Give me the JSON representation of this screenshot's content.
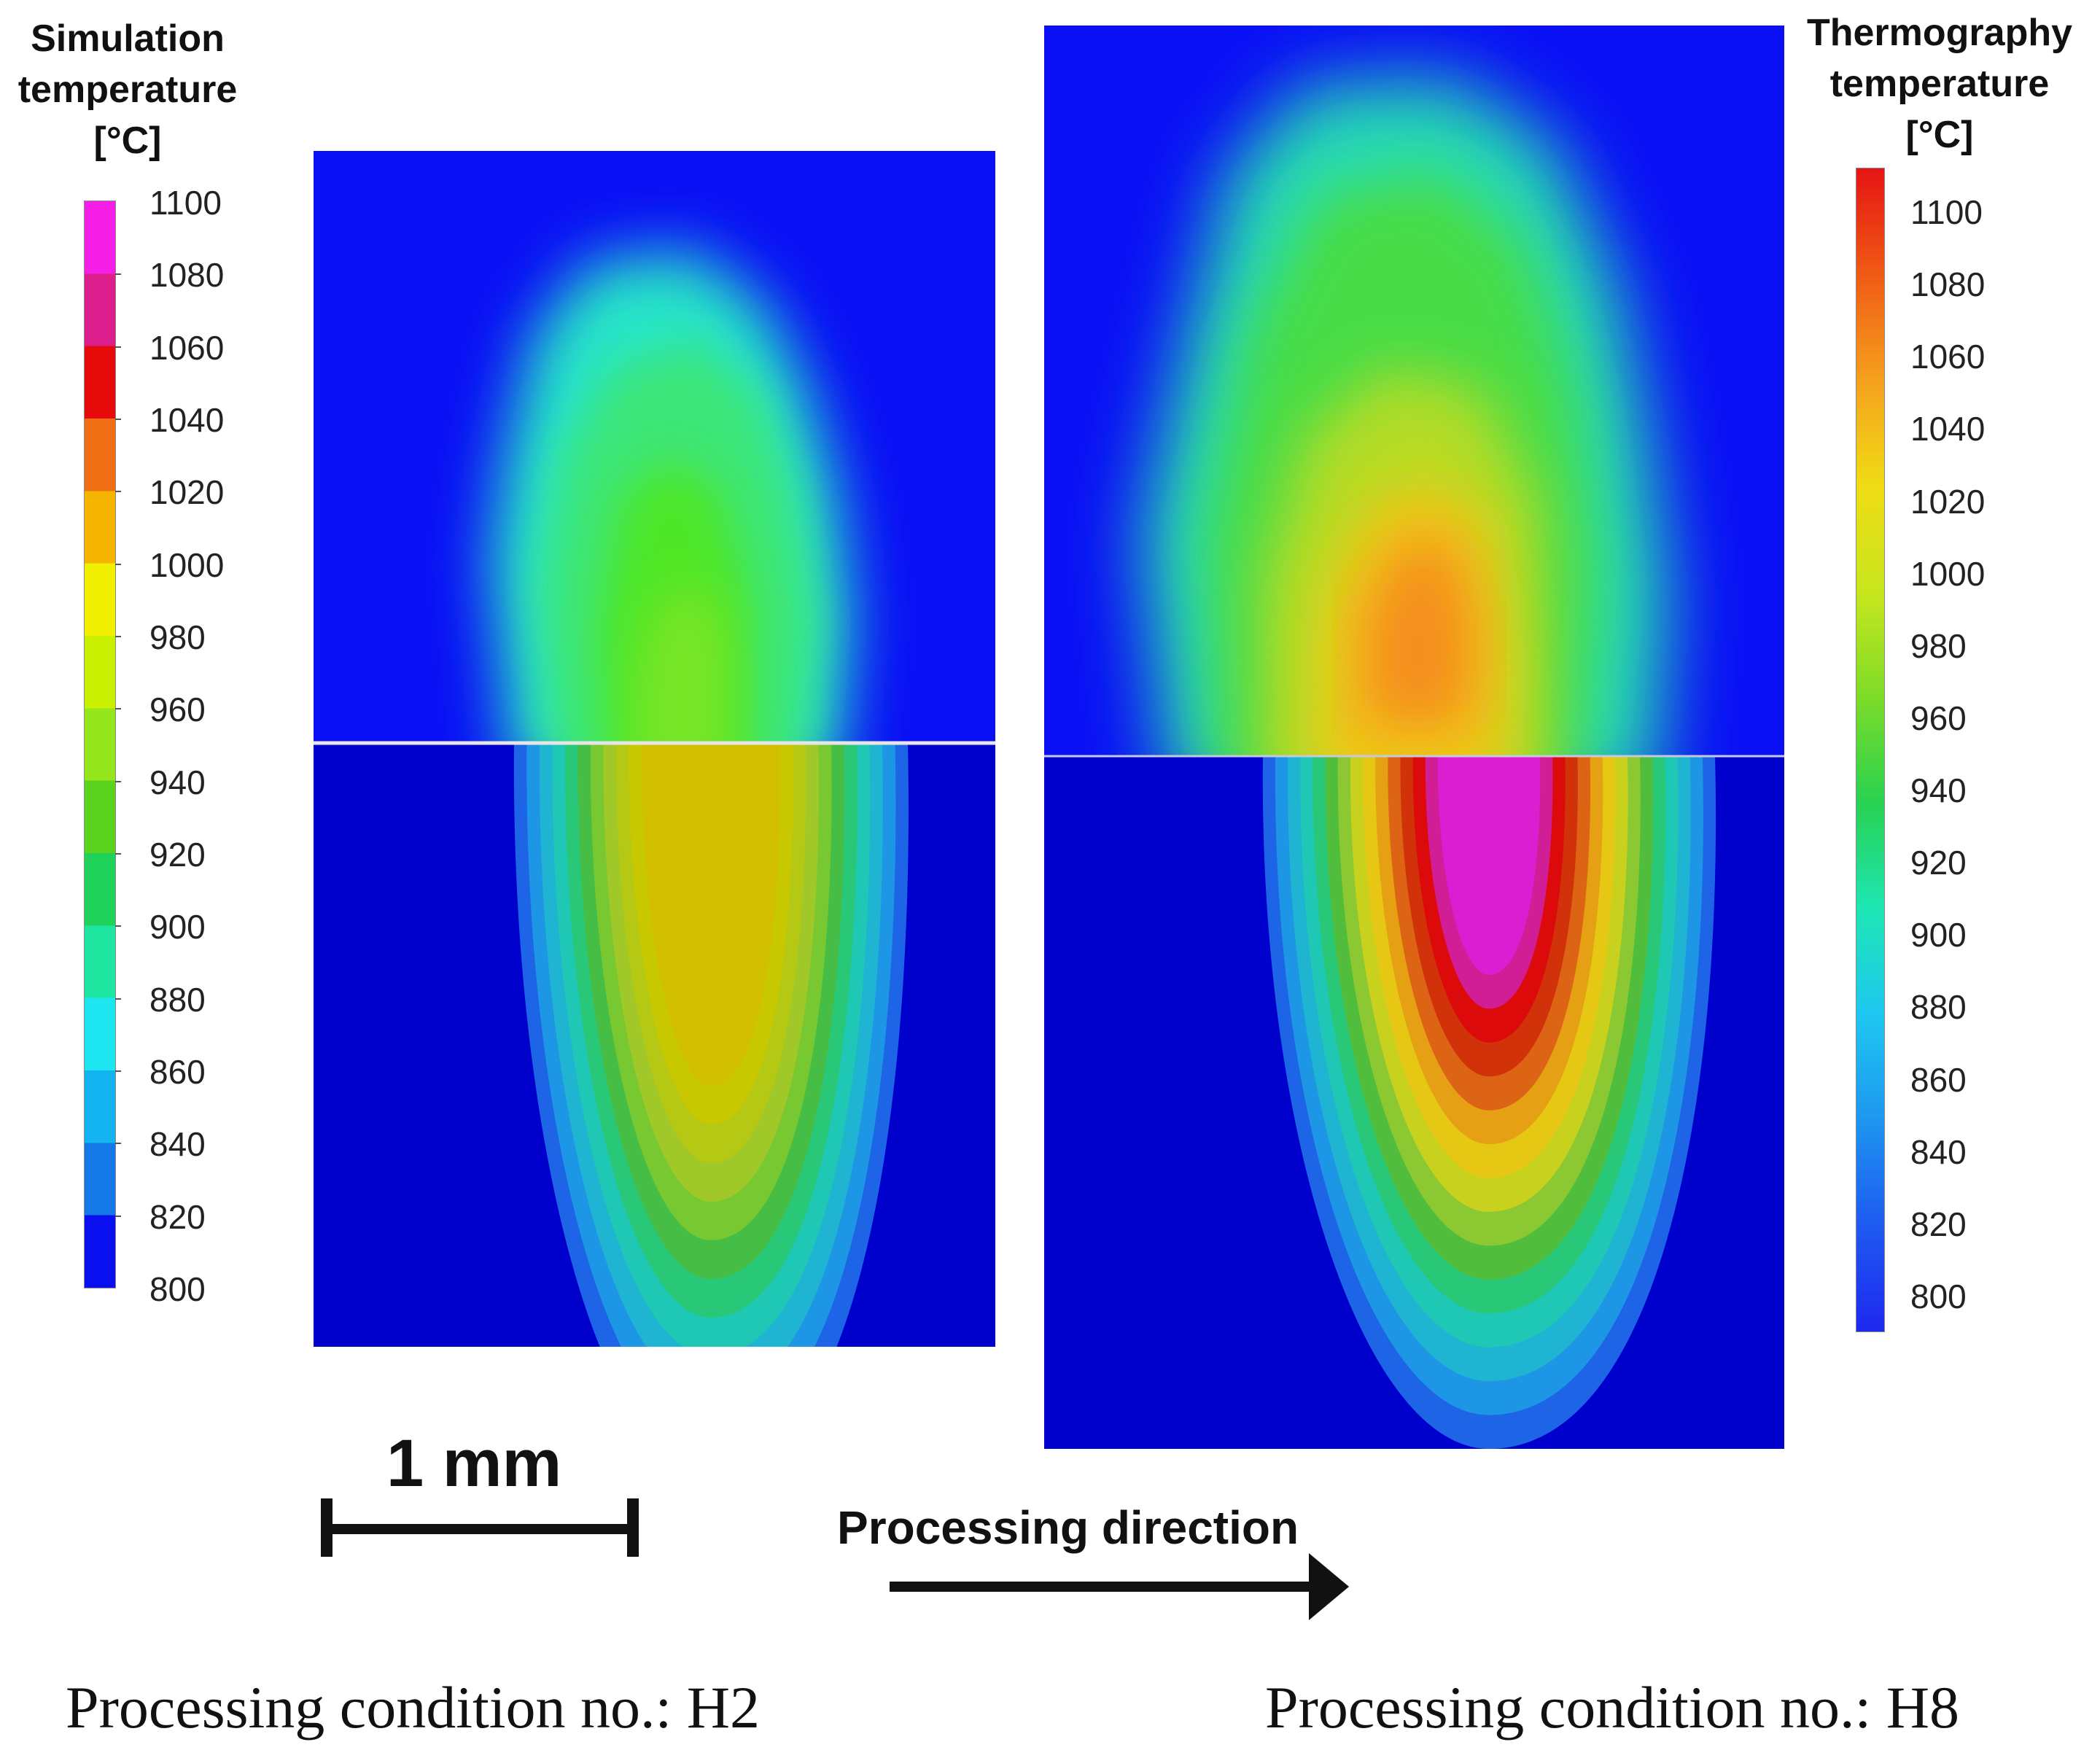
{
  "colors": {
    "background_blue": "#0a0ff5",
    "substrate_blue": "#0000cc",
    "divider": "#e6e6e6",
    "text": "#111111"
  },
  "simulation_legend": {
    "title_lines": [
      "Simulation",
      "temperature",
      "[°C]"
    ],
    "ticks": [
      "1100",
      "1080",
      "1060",
      "1040",
      "1020",
      "1000",
      "980",
      "960",
      "940",
      "920",
      "900",
      "880",
      "860",
      "840",
      "820",
      "800"
    ],
    "band_colors": [
      "#f51ee6",
      "#dc1e8c",
      "#e60a0a",
      "#f06e14",
      "#f5b400",
      "#f0f000",
      "#c8f000",
      "#96e61e",
      "#5ad21e",
      "#1ed25a",
      "#1ee6a0",
      "#1ee6f0",
      "#14b4f0",
      "#1478e6",
      "#0a0ff0"
    ]
  },
  "thermography_legend": {
    "title_lines": [
      "Thermography",
      "temperature",
      "[°C]"
    ],
    "ticks": [
      "1100",
      "1080",
      "1060",
      "1040",
      "1020",
      "1000",
      "980",
      "960",
      "940",
      "920",
      "900",
      "880",
      "860",
      "840",
      "820",
      "800"
    ],
    "gradient_colors": [
      "#e61414",
      "#f05a14",
      "#f5a01e",
      "#f0dc14",
      "#c8e61e",
      "#7ddc28",
      "#28d250",
      "#1ee6b4",
      "#1ec8f0",
      "#1e96f0",
      "#1e5af0",
      "#1e28f0"
    ]
  },
  "simulation_panel": {
    "pool_colors": [
      "#1e64e6",
      "#1e96e6",
      "#1eb4d2",
      "#1ec8b4",
      "#28c878",
      "#46be46",
      "#78c832",
      "#a0c828",
      "#b4c814",
      "#c8c800",
      "#d2c000"
    ]
  },
  "thermography_panel": {
    "pool_colors": [
      "#1e64e6",
      "#1e96e6",
      "#1eb4d2",
      "#1ec8b4",
      "#28c878",
      "#50be3c",
      "#8cc832",
      "#c8d21e",
      "#e6c814",
      "#e6a014",
      "#dc6414",
      "#d2320a",
      "#dc0a0a",
      "#d21e96",
      "#dc1ed2"
    ]
  },
  "scale_bar": {
    "label": "1 mm"
  },
  "direction_arrow": {
    "label": "Processing direction"
  },
  "conditions": {
    "left": "Processing condition no.: H2",
    "right": "Processing condition no.: H8"
  }
}
